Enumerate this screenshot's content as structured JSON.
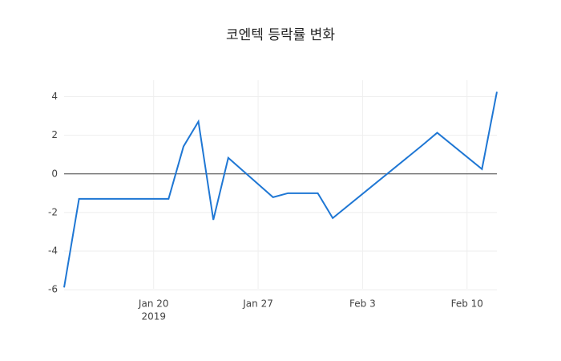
{
  "chart_data": {
    "type": "line",
    "title": "코엔텍 등락률 변화",
    "x": [
      "2019-01-14",
      "2019-01-15",
      "2019-01-16",
      "2019-01-17",
      "2019-01-18",
      "2019-01-21",
      "2019-01-22",
      "2019-01-23",
      "2019-01-24",
      "2019-01-25",
      "2019-01-28",
      "2019-01-29",
      "2019-01-30",
      "2019-01-31",
      "2019-02-01",
      "2019-02-07",
      "2019-02-08",
      "2019-02-11",
      "2019-02-12"
    ],
    "series": [
      {
        "color": "#1f77d4",
        "values": [
          -5.88,
          -1.29,
          -1.29,
          -1.29,
          -1.29,
          -1.29,
          1.42,
          2.71,
          -2.38,
          0.83,
          -1.21,
          -1.0,
          -1.0,
          -1.0,
          -2.29,
          1.48,
          2.13,
          0.25,
          4.25
        ]
      }
    ],
    "xlim": [
      "2019-01-14",
      "2019-02-12"
    ],
    "xticks": [
      {
        "value": "2019-01-20",
        "label": "Jan 20"
      },
      {
        "value": "2019-01-27",
        "label": "Jan 27"
      },
      {
        "value": "2019-02-03",
        "label": "Feb 3"
      },
      {
        "value": "2019-02-10",
        "label": "Feb 10"
      }
    ],
    "x_year_label": "2019",
    "ylim": [
      -5.95,
      4.85
    ],
    "yticks": [
      -6,
      -4,
      -2,
      0,
      2,
      4
    ],
    "grid": true,
    "zeroline": true
  }
}
